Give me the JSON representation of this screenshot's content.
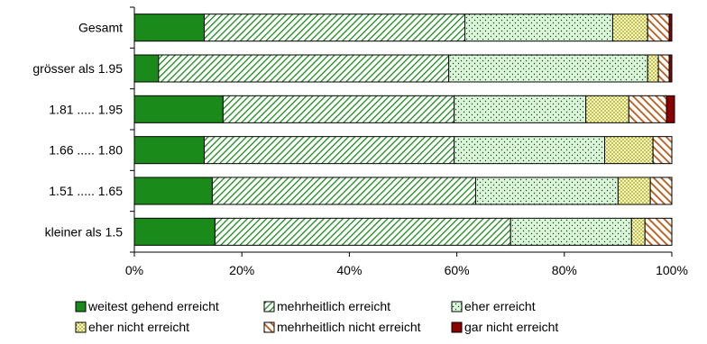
{
  "chart_data": {
    "type": "bar",
    "orientation": "horizontal",
    "stacked": "percent",
    "categories": [
      "Gesamt",
      "grösser als 1.95",
      "1.81 ..... 1.95",
      "1.66 ..... 1.80",
      "1.51 ..... 1.65",
      "kleiner als 1.5"
    ],
    "series": [
      {
        "name": "weitest gehend erreicht",
        "color": "#1a8a1a",
        "pattern": "solid",
        "values": [
          13.0,
          4.5,
          16.5,
          13.0,
          14.5,
          15.0
        ]
      },
      {
        "name": "mehrheitlich erreicht",
        "color": "#1a8a1a",
        "pattern": "diagonal-light",
        "values": [
          48.5,
          54.0,
          43.0,
          46.5,
          49.0,
          55.0
        ]
      },
      {
        "name": "eher erreicht",
        "color": "#d8f8d8",
        "pattern": "dots",
        "values": [
          27.5,
          37.0,
          24.5,
          28.0,
          26.5,
          22.5
        ]
      },
      {
        "name": "eher nicht erreicht",
        "color": "#ffff99",
        "pattern": "dots",
        "values": [
          6.5,
          2.0,
          8.0,
          9.0,
          6.0,
          2.5
        ]
      },
      {
        "name": "mehrheitlich nicht erreicht",
        "color": "#b85a1a",
        "pattern": "diagonal-heavy",
        "values": [
          4.0,
          2.0,
          7.0,
          3.5,
          4.0,
          5.0
        ]
      },
      {
        "name": "gar nicht erreicht",
        "color": "#8b0000",
        "pattern": "solid",
        "values": [
          0.5,
          0.5,
          1.5,
          0.0,
          0.0,
          0.0
        ]
      }
    ],
    "xlim": [
      0,
      100
    ],
    "xticks": [
      "0%",
      "20%",
      "40%",
      "60%",
      "80%",
      "100%"
    ],
    "title": "",
    "xlabel": "",
    "ylabel": "",
    "grid": false,
    "legend_position": "bottom"
  }
}
